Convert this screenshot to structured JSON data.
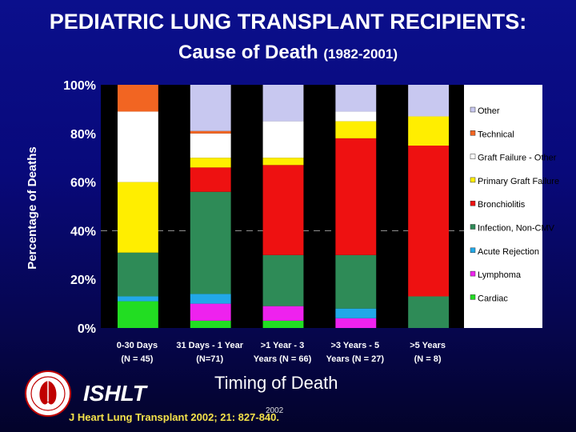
{
  "header": {
    "title_line1": "PEDIATRIC LUNG TRANSPLANT RECIPIENTS:",
    "title_line2": "Cause of Death",
    "title_years": "(1982-2001)"
  },
  "footer": {
    "brand": "ISHLT",
    "x_title": "Timing of Death",
    "citation": "J Heart Lung Transplant 2002; 21: 827-840.",
    "year_mark": "2002"
  },
  "chart_data": {
    "type": "bar",
    "stacked": true,
    "normalized": true,
    "title": "PEDIATRIC LUNG TRANSPLANT RECIPIENTS: Cause of Death (1982-2001)",
    "xlabel": "Timing of Death",
    "ylabel": "Percentage of Deaths",
    "ylim": [
      0,
      100
    ],
    "yticks": [
      "0%",
      "20%",
      "40%",
      "60%",
      "80%",
      "100%"
    ],
    "ytick_values": [
      0,
      20,
      40,
      60,
      80,
      100
    ],
    "categories": [
      {
        "line1": "0-30 Days",
        "line2": "(N = 45)"
      },
      {
        "line1": "31 Days - 1 Year",
        "line2": "(N=71)"
      },
      {
        "line1": ">1 Year - 3",
        "line2": "Years (N = 66)"
      },
      {
        "line1": ">3 Years - 5",
        "line2": "Years (N = 27)"
      },
      {
        "line1": ">5 Years",
        "line2": "(N = 8)"
      }
    ],
    "series": [
      {
        "name": "Cardiac",
        "color": "#22dd22",
        "values": [
          11,
          3,
          3,
          0,
          0
        ]
      },
      {
        "name": "Lymphoma",
        "color": "#ee22ee",
        "values": [
          0,
          7,
          6,
          4,
          0
        ]
      },
      {
        "name": "Acute Rejection",
        "color": "#22a8e8",
        "values": [
          2,
          4,
          0,
          4,
          0
        ]
      },
      {
        "name": "Infection, Non-CMV",
        "color": "#2e8b57",
        "values": [
          18,
          42,
          21,
          22,
          13
        ]
      },
      {
        "name": "Bronchiolitis",
        "color": "#ee1111",
        "values": [
          0,
          10,
          37,
          48,
          62
        ]
      },
      {
        "name": "Primary Graft Failure",
        "color": "#ffee00",
        "values": [
          29,
          4,
          3,
          7,
          12
        ]
      },
      {
        "name": "Graft Failure - Other",
        "color": "#ffffff",
        "values": [
          29,
          10,
          15,
          4,
          0
        ]
      },
      {
        "name": "Technical",
        "color": "#f26522",
        "values": [
          11,
          1,
          0,
          0,
          0
        ]
      },
      {
        "name": "Other",
        "color": "#c8c8f0",
        "values": [
          0,
          19,
          15,
          11,
          13
        ]
      }
    ],
    "legend_position": "right",
    "grid": false,
    "background": "#ffffff",
    "bar_gap_color": "#000000"
  }
}
